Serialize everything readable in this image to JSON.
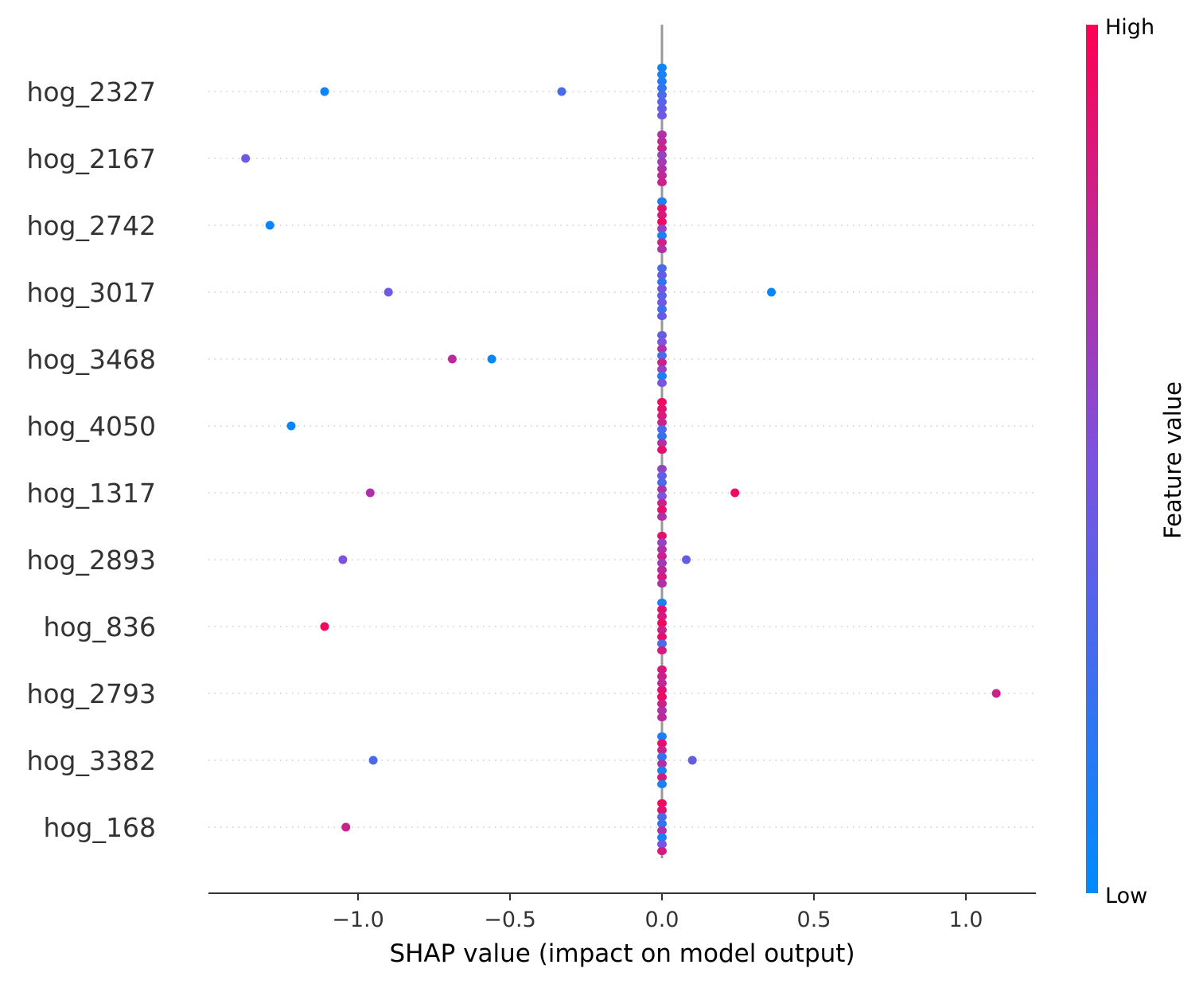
{
  "chart_data": {
    "type": "scatter",
    "title": "",
    "xlabel": "SHAP value (impact on model output)",
    "ylabel": "",
    "xlim": [
      -1.49,
      1.23
    ],
    "xticks": [
      {
        "value": -1.0,
        "label": "−1.0"
      },
      {
        "value": -0.5,
        "label": "−0.5"
      },
      {
        "value": 0.0,
        "label": "0.0"
      },
      {
        "value": 0.5,
        "label": "0.5"
      },
      {
        "value": 1.0,
        "label": "1.0"
      }
    ],
    "colorbar": {
      "title": "Feature value",
      "high_label": "High",
      "low_label": "Low",
      "low_color": "#008bfb",
      "mid_color": "#7c52e0",
      "high_color": "#ff0052"
    },
    "grid": "dotted-horizontal",
    "zero_line_color": "#999999",
    "features": [
      {
        "name": "hog_2327",
        "outliers": [
          {
            "x": -1.11,
            "v": 0.05
          },
          {
            "x": -0.33,
            "v": 0.3
          }
        ],
        "stack": [
          0.05,
          0.1,
          0.15,
          0.2,
          0.3,
          0.35,
          0.4,
          0.45
        ]
      },
      {
        "name": "hog_2167",
        "outliers": [
          {
            "x": -1.37,
            "v": 0.45
          }
        ],
        "stack": [
          0.7,
          0.75,
          0.8,
          0.6,
          0.65,
          0.7,
          0.75,
          0.8
        ]
      },
      {
        "name": "hog_2742",
        "outliers": [
          {
            "x": -1.29,
            "v": 0.05
          }
        ],
        "stack": [
          0.1,
          0.9,
          0.85,
          0.95,
          0.6,
          0.1,
          0.8,
          0.7
        ]
      },
      {
        "name": "hog_3017",
        "outliers": [
          {
            "x": -0.9,
            "v": 0.45
          },
          {
            "x": 0.36,
            "v": 0.05
          }
        ],
        "stack": [
          0.3,
          0.4,
          0.2,
          0.5,
          0.35,
          0.45,
          0.25,
          0.4
        ]
      },
      {
        "name": "hog_3468",
        "outliers": [
          {
            "x": -0.69,
            "v": 0.75
          },
          {
            "x": -0.56,
            "v": 0.05
          }
        ],
        "stack": [
          0.4,
          0.5,
          0.7,
          0.3,
          0.8,
          0.6,
          0.1,
          0.5
        ]
      },
      {
        "name": "hog_4050",
        "outliers": [
          {
            "x": -1.22,
            "v": 0.05
          }
        ],
        "stack": [
          0.95,
          0.9,
          0.85,
          0.8,
          0.3,
          0.2,
          0.7,
          0.9
        ]
      },
      {
        "name": "hog_1317",
        "outliers": [
          {
            "x": -0.96,
            "v": 0.7
          },
          {
            "x": 0.24,
            "v": 0.95
          }
        ],
        "stack": [
          0.6,
          0.4,
          0.3,
          0.7,
          0.5,
          0.8,
          0.9,
          0.7
        ]
      },
      {
        "name": "hog_2893",
        "outliers": [
          {
            "x": -1.05,
            "v": 0.5
          },
          {
            "x": 0.08,
            "v": 0.4
          }
        ],
        "stack": [
          0.9,
          0.6,
          0.7,
          0.8,
          0.65,
          0.75,
          0.85,
          0.7
        ]
      },
      {
        "name": "hog_836",
        "outliers": [
          {
            "x": -1.11,
            "v": 0.95
          }
        ],
        "stack": [
          0.1,
          0.9,
          0.85,
          0.95,
          0.8,
          0.9,
          0.3,
          0.85
        ]
      },
      {
        "name": "hog_2793",
        "outliers": [
          {
            "x": 1.1,
            "v": 0.8
          }
        ],
        "stack": [
          0.85,
          0.8,
          0.75,
          0.9,
          0.95,
          0.8,
          0.7,
          0.75
        ]
      },
      {
        "name": "hog_3382",
        "outliers": [
          {
            "x": -0.95,
            "v": 0.3
          },
          {
            "x": 0.1,
            "v": 0.4
          }
        ],
        "stack": [
          0.1,
          0.9,
          0.8,
          0.2,
          0.7,
          0.1,
          0.85,
          0.1
        ]
      },
      {
        "name": "hog_168",
        "outliers": [
          {
            "x": -1.04,
            "v": 0.8
          }
        ],
        "stack": [
          0.95,
          0.9,
          0.3,
          0.2,
          0.7,
          0.1,
          0.5,
          0.85
        ]
      }
    ]
  }
}
